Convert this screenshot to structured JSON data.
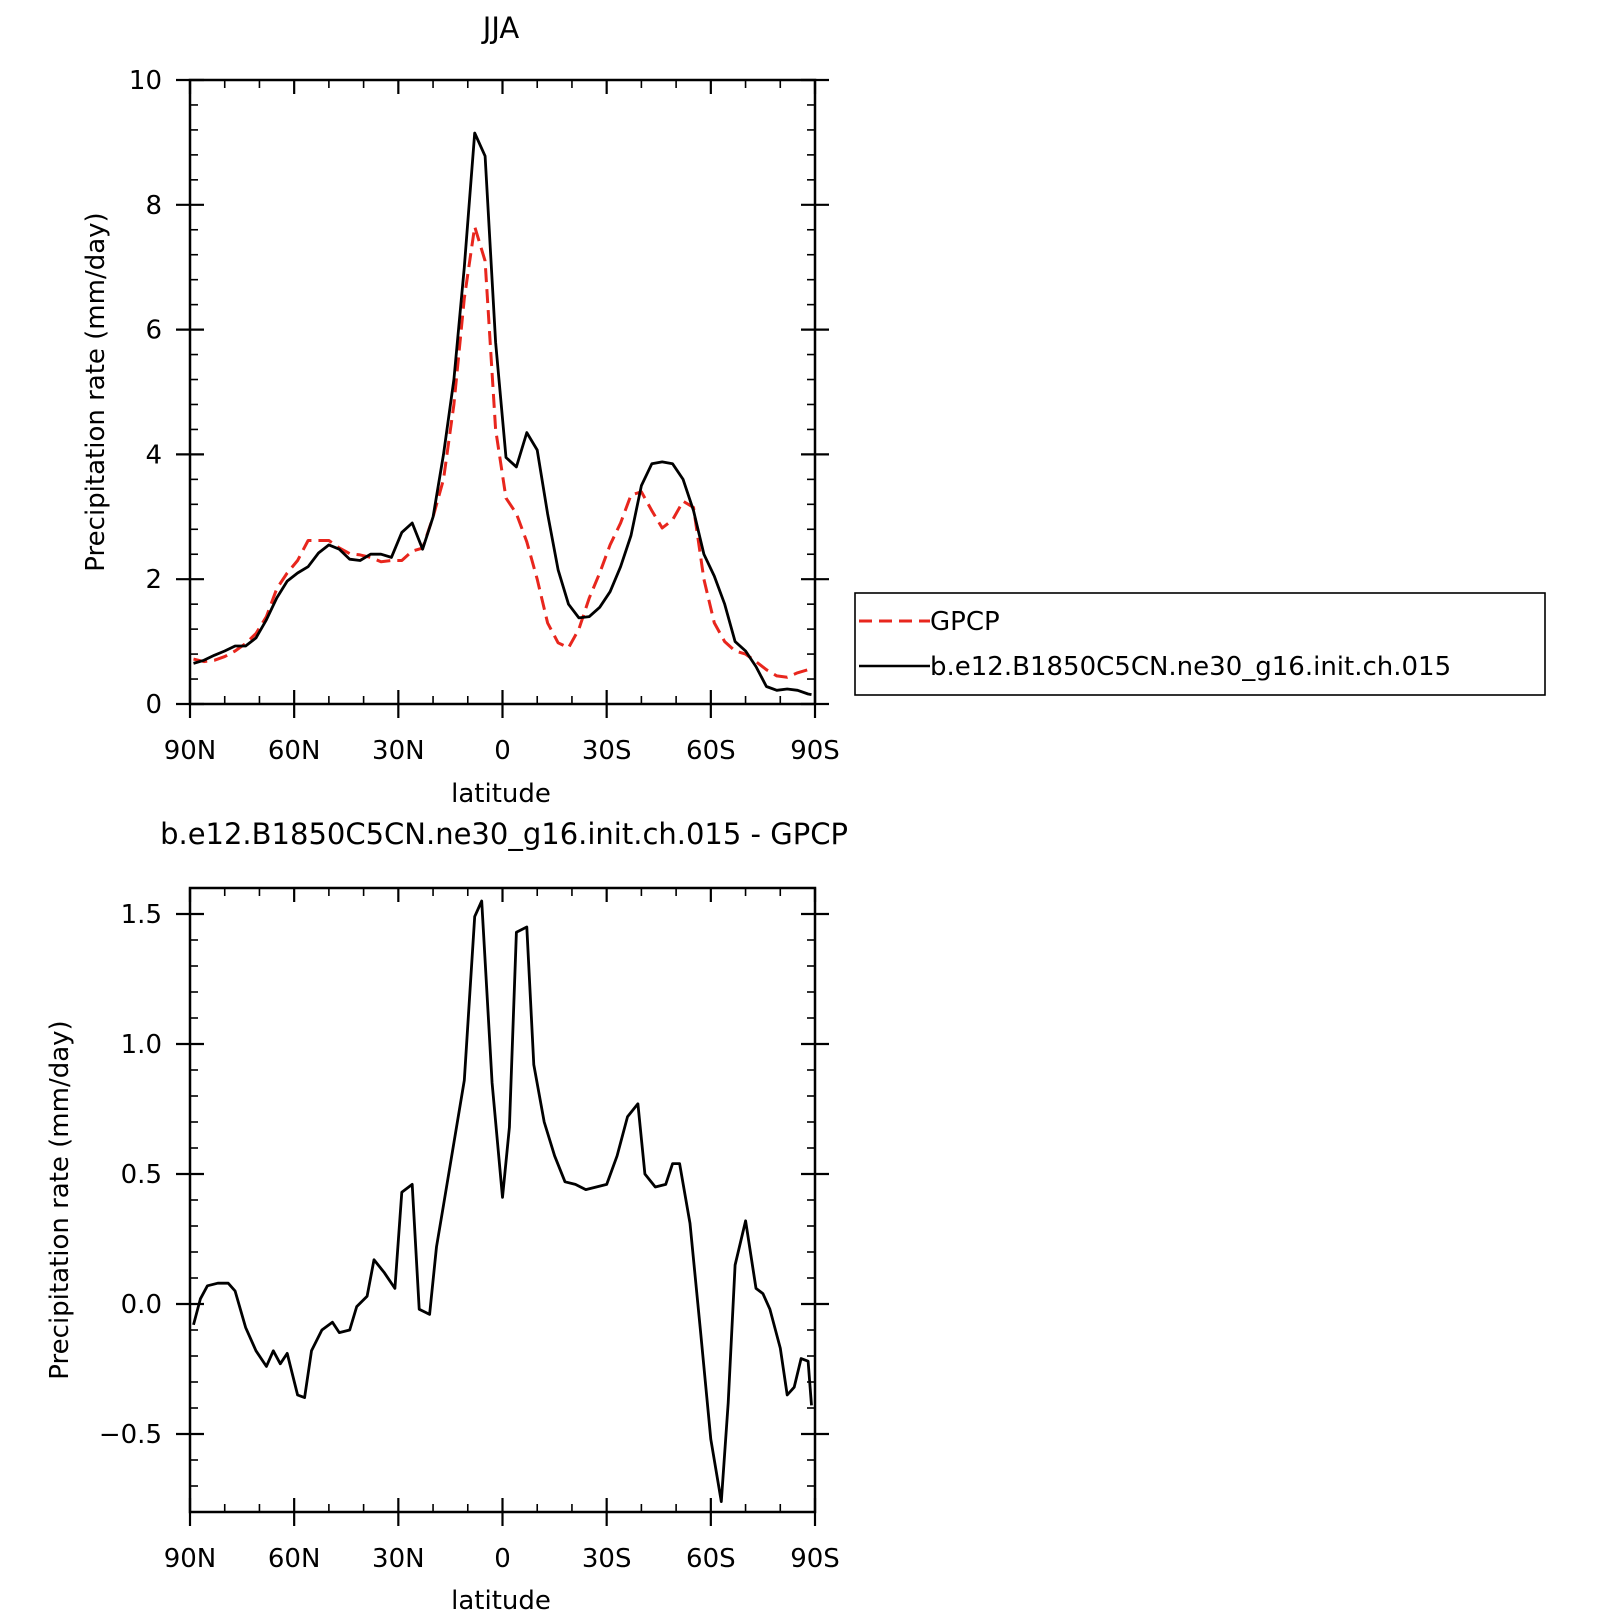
{
  "chart_data": [
    {
      "type": "line",
      "title": "JJA",
      "xlabel": "latitude",
      "ylabel": "Precipitation rate (mm/day)",
      "xlim": [
        -90,
        90
      ],
      "ylim": [
        0,
        10
      ],
      "xticks": [
        -90,
        -60,
        -30,
        0,
        30,
        60,
        90
      ],
      "xticklabels": [
        "90N",
        "60N",
        "30N",
        "0",
        "30S",
        "60S",
        "90S"
      ],
      "yticks": [
        0,
        2,
        4,
        6,
        8,
        10
      ],
      "yticklabels": [
        "0",
        "2",
        "4",
        "6",
        "8",
        "10"
      ],
      "legend_position": "right",
      "series": [
        {
          "name": "GPCP",
          "color": "#e8261d",
          "dash": "dashed",
          "x": [
            -89,
            -86,
            -83,
            -80,
            -77,
            -74,
            -71,
            -68,
            -65,
            -62,
            -59,
            -56,
            -53,
            -50,
            -47,
            -44,
            -41,
            -38,
            -35,
            -32,
            -29,
            -26,
            -23,
            -20,
            -17,
            -14,
            -11,
            -8,
            -5,
            -2,
            1,
            4,
            7,
            10,
            13,
            16,
            19,
            22,
            25,
            28,
            31,
            34,
            37,
            40,
            43,
            46,
            49,
            52,
            55,
            58,
            61,
            64,
            67,
            70,
            73,
            76,
            79,
            82,
            85,
            88,
            89
          ],
          "y": [
            0.72,
            0.68,
            0.7,
            0.76,
            0.85,
            0.97,
            1.13,
            1.4,
            1.85,
            2.1,
            2.3,
            2.62,
            2.62,
            2.62,
            2.5,
            2.41,
            2.39,
            2.35,
            2.28,
            2.3,
            2.3,
            2.45,
            2.5,
            3.0,
            3.6,
            4.8,
            6.5,
            7.65,
            7.1,
            4.4,
            3.3,
            3.05,
            2.6,
            2.0,
            1.3,
            0.98,
            0.9,
            1.2,
            1.7,
            2.1,
            2.55,
            2.9,
            3.35,
            3.4,
            3.1,
            2.82,
            2.95,
            3.25,
            3.15,
            2.0,
            1.3,
            1.0,
            0.85,
            0.8,
            0.68,
            0.55,
            0.45,
            0.43,
            0.5,
            0.55,
            0.55
          ]
        },
        {
          "name": "b.e12.B1850C5CN.ne30_g16.init.ch.015",
          "color": "#000000",
          "dash": "solid",
          "x": [
            -89,
            -86,
            -83,
            -80,
            -77,
            -74,
            -71,
            -68,
            -65,
            -62,
            -59,
            -56,
            -53,
            -50,
            -47,
            -44,
            -41,
            -38,
            -35,
            -32,
            -29,
            -26,
            -23,
            -20,
            -17,
            -14,
            -11,
            -8,
            -5,
            -2,
            1,
            4,
            7,
            10,
            13,
            16,
            19,
            22,
            25,
            28,
            31,
            34,
            37,
            40,
            43,
            46,
            49,
            52,
            55,
            58,
            61,
            64,
            67,
            70,
            73,
            76,
            79,
            82,
            85,
            88,
            89
          ],
          "y": [
            0.65,
            0.7,
            0.78,
            0.85,
            0.93,
            0.93,
            1.06,
            1.35,
            1.7,
            1.97,
            2.1,
            2.2,
            2.42,
            2.55,
            2.48,
            2.32,
            2.3,
            2.4,
            2.4,
            2.35,
            2.75,
            2.9,
            2.48,
            3.0,
            4.0,
            5.2,
            7.0,
            9.15,
            8.78,
            5.8,
            3.95,
            3.8,
            4.35,
            4.07,
            3.05,
            2.15,
            1.6,
            1.38,
            1.4,
            1.55,
            1.8,
            2.2,
            2.7,
            3.5,
            3.85,
            3.88,
            3.85,
            3.6,
            3.1,
            2.4,
            2.05,
            1.6,
            1.0,
            0.85,
            0.6,
            0.28,
            0.22,
            0.24,
            0.22,
            0.16,
            0.15
          ]
        }
      ]
    },
    {
      "type": "line",
      "title": "b.e12.B1850C5CN.ne30_g16.init.ch.015 - GPCP",
      "xlabel": "latitude",
      "ylabel": "Precipitation rate (mm/day)",
      "xlim": [
        -90,
        90
      ],
      "ylim": [
        -0.8,
        1.6
      ],
      "xticks": [
        -90,
        -60,
        -30,
        0,
        30,
        60,
        90
      ],
      "xticklabels": [
        "90N",
        "60N",
        "30N",
        "0",
        "30S",
        "60S",
        "90S"
      ],
      "yticks": [
        -0.5,
        0.0,
        0.5,
        1.0,
        1.5
      ],
      "yticklabels": [
        "-0.5",
        "0.0",
        "0.5",
        "1.0",
        "1.5"
      ],
      "series": [
        {
          "color": "#000000",
          "dash": "solid",
          "x": [
            -89,
            -87,
            -85,
            -82,
            -79,
            -77,
            -74,
            -71,
            -68,
            -66,
            -64,
            -62,
            -59,
            -57,
            -55,
            -52,
            -49,
            -47,
            -44,
            -42,
            -39,
            -37,
            -34,
            -31,
            -29,
            -26,
            -24,
            -21,
            -19,
            -17,
            -14,
            -11,
            -8,
            -6,
            -3,
            0,
            2,
            4,
            7,
            9,
            12,
            15,
            18,
            21,
            24,
            27,
            30,
            33,
            36,
            39,
            41,
            44,
            47,
            49,
            51,
            54,
            57,
            60,
            63,
            65,
            67,
            70,
            73,
            75,
            77,
            80,
            82,
            84,
            86,
            88,
            89
          ],
          "y": [
            -0.08,
            0.02,
            0.07,
            0.08,
            0.08,
            0.05,
            -0.09,
            -0.18,
            -0.24,
            -0.18,
            -0.23,
            -0.19,
            -0.35,
            -0.36,
            -0.18,
            -0.1,
            -0.07,
            -0.11,
            -0.1,
            -0.01,
            0.03,
            0.17,
            0.12,
            0.06,
            0.43,
            0.46,
            -0.02,
            -0.04,
            0.22,
            0.38,
            0.62,
            0.86,
            1.49,
            1.55,
            0.85,
            0.41,
            0.68,
            1.43,
            1.45,
            0.92,
            0.7,
            0.57,
            0.47,
            0.46,
            0.44,
            0.45,
            0.46,
            0.57,
            0.72,
            0.77,
            0.5,
            0.45,
            0.46,
            0.54,
            0.54,
            0.31,
            -0.1,
            -0.52,
            -0.76,
            -0.38,
            0.15,
            0.32,
            0.06,
            0.04,
            -0.02,
            -0.17,
            -0.35,
            -0.32,
            -0.21,
            -0.22,
            -0.39
          ]
        }
      ]
    }
  ]
}
